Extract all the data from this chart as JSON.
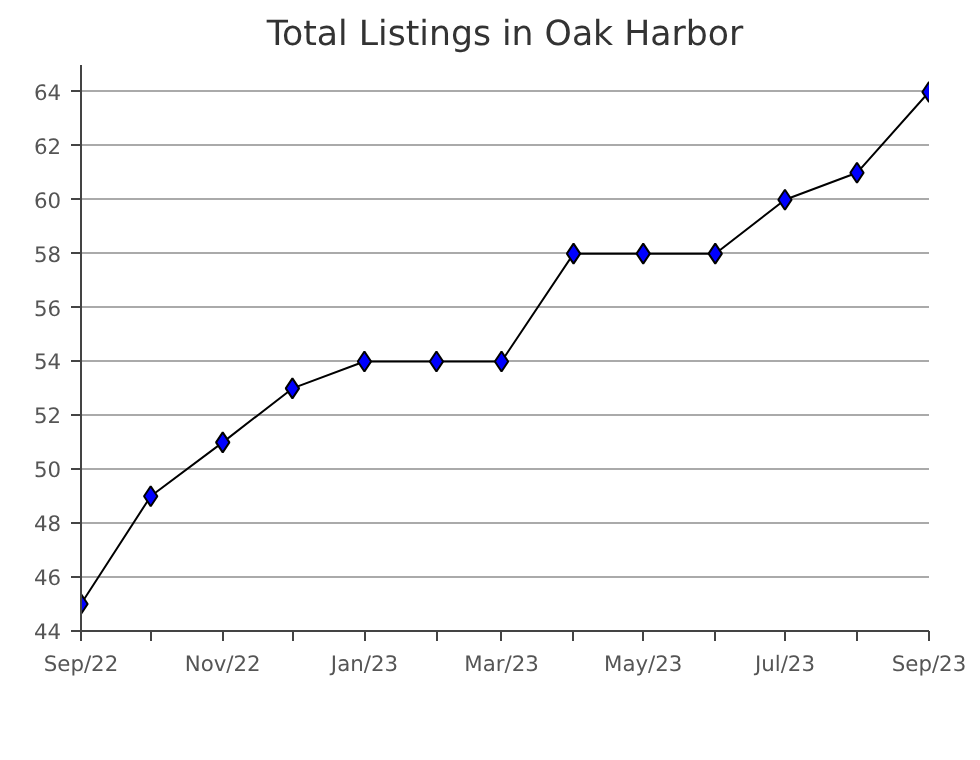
{
  "chart_data": {
    "type": "line",
    "title": "Total Listings in Oak Harbor",
    "x": [
      "2022-09",
      "2022-10",
      "2022-11",
      "2022-12",
      "2023-01",
      "2023-02",
      "2023-03",
      "2023-04",
      "2023-05",
      "2023-06",
      "2023-07",
      "2023-08",
      "2023-09"
    ],
    "series": [
      {
        "color": "#0000ff",
        "values": [
          45,
          49,
          51,
          53,
          54,
          54,
          54,
          58,
          58,
          58,
          60,
          61,
          64
        ]
      }
    ],
    "xlim": [
      "2022-09",
      "2023-09"
    ],
    "xticks": [
      {
        "value": "2022-09",
        "label": "Sep/22"
      },
      {
        "value": "2022-10",
        "label": null
      },
      {
        "value": "2022-11",
        "label": "Nov/22"
      },
      {
        "value": "2022-12",
        "label": null
      },
      {
        "value": "2023-01",
        "label": "Jan/23"
      },
      {
        "value": "2023-02",
        "label": null
      },
      {
        "value": "2023-03",
        "label": "Mar/23"
      },
      {
        "value": "2023-04",
        "label": null
      },
      {
        "value": "2023-05",
        "label": "May/23"
      },
      {
        "value": "2023-06",
        "label": null
      },
      {
        "value": "2023-07",
        "label": "Jul/23"
      },
      {
        "value": "2023-08",
        "label": null
      },
      {
        "value": "2023-09",
        "label": "Sep/23"
      }
    ],
    "ylim": [
      44,
      65
    ],
    "yticks": [
      44,
      46,
      48,
      50,
      52,
      54,
      56,
      58,
      60,
      62,
      64
    ],
    "grid": "y",
    "marker": "diamond",
    "line_style": "solid"
  }
}
